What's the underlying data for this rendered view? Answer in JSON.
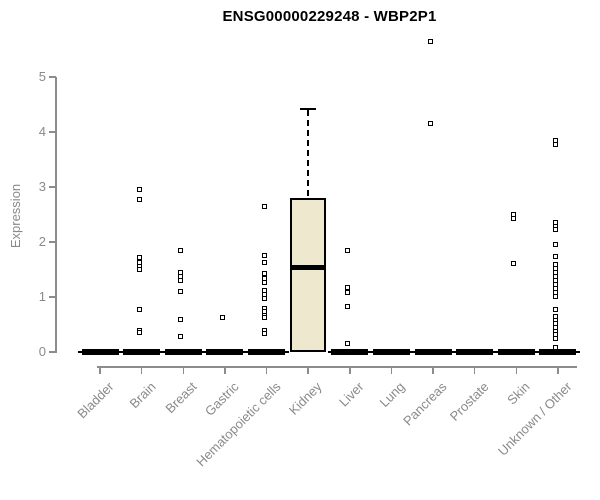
{
  "chart_data": {
    "type": "boxplot",
    "title": "ENSG00000229248 - WBP2P1",
    "ylabel": "Expression",
    "xlabel": "",
    "ylim": [
      0,
      5
    ],
    "yticks": [
      "0",
      "1",
      "2",
      "3",
      "4",
      "5"
    ],
    "grid": false,
    "legend": "none",
    "categories": [
      "Bladder",
      "Brain",
      "Breast",
      "Gastric",
      "Hematopoietic cells",
      "Kidney",
      "Liver",
      "Lung",
      "Pancreas",
      "Prostate",
      "Skin",
      "Unknown / Other"
    ],
    "series": [
      {
        "category": "Bladder",
        "box": {
          "min": 0,
          "q1": 0,
          "median": 0,
          "q3": 0,
          "max": 0
        },
        "outliers": []
      },
      {
        "category": "Brain",
        "box": {
          "min": 0,
          "q1": 0,
          "median": 0,
          "q3": 0,
          "max": 0
        },
        "outliers": [
          2.96,
          2.78,
          1.71,
          1.62,
          1.56,
          1.5,
          0.78,
          0.4,
          0.35
        ]
      },
      {
        "category": "Breast",
        "box": {
          "min": 0,
          "q1": 0,
          "median": 0,
          "q3": 0,
          "max": 0
        },
        "outliers": [
          1.85,
          1.44,
          1.37,
          1.3,
          1.1,
          0.6,
          0.29
        ]
      },
      {
        "category": "Gastric",
        "box": {
          "min": 0,
          "q1": 0,
          "median": 0,
          "q3": 0,
          "max": 0
        },
        "outliers": [
          0.62
        ]
      },
      {
        "category": "Hematopoietic cells",
        "box": {
          "min": 0,
          "q1": 0,
          "median": 0,
          "q3": 0,
          "max": 0
        },
        "outliers": [
          2.64,
          1.76,
          1.62,
          1.42,
          1.33,
          1.26,
          1.12,
          1.04,
          0.97,
          0.8,
          0.73,
          0.66,
          0.62,
          0.4,
          0.33
        ]
      },
      {
        "category": "Kidney",
        "box": {
          "min": 0,
          "q1": 0,
          "median": 1.54,
          "q3": 2.8,
          "max": 4.42
        },
        "outliers": []
      },
      {
        "category": "Liver",
        "box": {
          "min": 0,
          "q1": 0,
          "median": 0,
          "q3": 0,
          "max": 0
        },
        "outliers": [
          1.85,
          1.17,
          1.08,
          0.83,
          0.16
        ]
      },
      {
        "category": "Lung",
        "box": {
          "min": 0,
          "q1": 0,
          "median": 0,
          "q3": 0,
          "max": 0
        },
        "outliers": []
      },
      {
        "category": "Pancreas",
        "box": {
          "min": 0,
          "q1": 0,
          "median": 0,
          "q3": 0,
          "max": 0
        },
        "outliers": [
          5.65,
          4.16
        ]
      },
      {
        "category": "Prostate",
        "box": {
          "min": 0,
          "q1": 0,
          "median": 0,
          "q3": 0,
          "max": 0
        },
        "outliers": []
      },
      {
        "category": "Skin",
        "box": {
          "min": 0,
          "q1": 0,
          "median": 0,
          "q3": 0,
          "max": 0
        },
        "outliers": [
          2.5,
          2.42,
          1.61
        ]
      },
      {
        "category": "Unknown / Other",
        "box": {
          "min": 0,
          "q1": 0,
          "median": 0,
          "q3": 0,
          "max": 0
        },
        "outliers": [
          3.84,
          3.77,
          2.36,
          2.29,
          2.23,
          1.96,
          1.74,
          1.59,
          1.52,
          1.45,
          1.37,
          1.3,
          1.22,
          1.15,
          1.08,
          1.01,
          0.78,
          0.64,
          0.58,
          0.51,
          0.44,
          0.38,
          0.31,
          0.24,
          0.08
        ]
      }
    ],
    "colors": {
      "box_fill": "#EDE8CE",
      "box_border": "#000000",
      "median": "#000000",
      "outlier": "#000000",
      "axis": "#8c8c8c",
      "tick_text": "#8a8a8a",
      "title_text": "#000000",
      "background": "#ffffff"
    }
  }
}
